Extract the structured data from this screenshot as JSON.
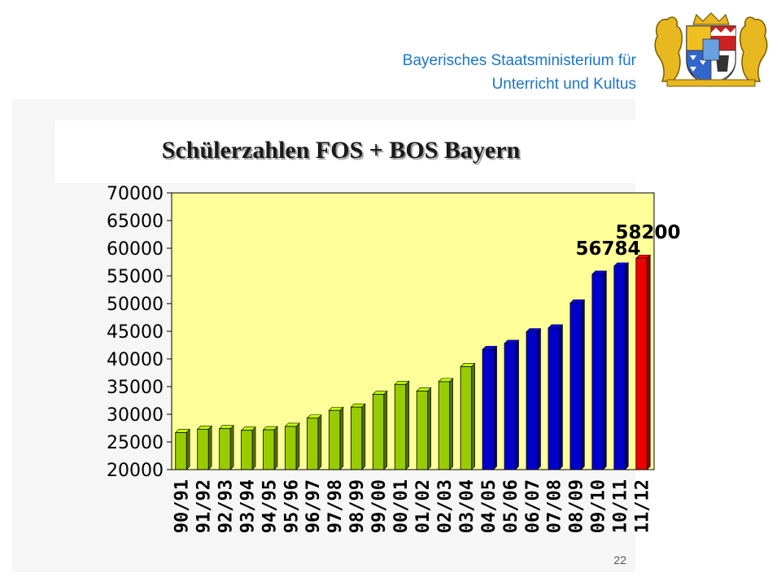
{
  "header": {
    "line1": "Bayerisches Staatsministerium für",
    "line2": "Unterricht und Kultus"
  },
  "slide": {
    "title": "Schülerzahlen FOS + BOS Bayern",
    "page_number": "22"
  },
  "colors": {
    "plot_bg": "#ffff99",
    "green_bar": "#99cc00",
    "blue_bar": "#0000cc",
    "red_bar": "#ee0000",
    "header_text": "#1a75c9"
  },
  "chart_data": {
    "type": "bar",
    "title": "Schülerzahlen FOS + BOS Bayern",
    "xlabel": "",
    "ylabel": "",
    "ylim": [
      20000,
      70000
    ],
    "yticks": [
      20000,
      25000,
      30000,
      35000,
      40000,
      45000,
      50000,
      55000,
      60000,
      65000,
      70000
    ],
    "grid": false,
    "legend": "none",
    "categories": [
      "90/91",
      "91/92",
      "92/93",
      "93/94",
      "94/95",
      "95/96",
      "96/97",
      "97/98",
      "98/99",
      "99/00",
      "00/01",
      "01/02",
      "02/03",
      "03/04",
      "04/05",
      "05/06",
      "06/07",
      "07/08",
      "08/09",
      "09/10",
      "10/11",
      "11/12"
    ],
    "values": [
      26700,
      27300,
      27400,
      27100,
      27200,
      27800,
      29300,
      30700,
      31300,
      33600,
      35400,
      34200,
      35900,
      38600,
      41700,
      42800,
      44900,
      45600,
      50100,
      55300,
      56784,
      58200
    ],
    "bar_colors": [
      "green",
      "green",
      "green",
      "green",
      "green",
      "green",
      "green",
      "green",
      "green",
      "green",
      "green",
      "green",
      "green",
      "green",
      "blue",
      "blue",
      "blue",
      "blue",
      "blue",
      "blue",
      "blue",
      "red"
    ],
    "data_labels": [
      {
        "category": "10/11",
        "text": "56784"
      },
      {
        "category": "11/12",
        "text": "58200"
      }
    ]
  }
}
